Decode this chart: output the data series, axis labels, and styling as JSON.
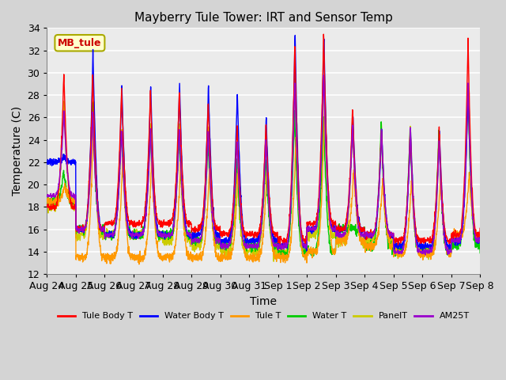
{
  "title": "Mayberry Tule Tower: IRT and Sensor Temp",
  "xlabel": "Time",
  "ylabel": "Temperature (C)",
  "ylim": [
    12,
    34
  ],
  "n_days": 15,
  "x_tick_labels": [
    "Aug 24",
    "Aug 25",
    "Aug 26",
    "Aug 27",
    "Aug 28",
    "Aug 29",
    "Aug 30",
    "Aug 31",
    "Sep 1",
    "Sep 2",
    "Sep 3",
    "Sep 4",
    "Sep 5",
    "Sep 6",
    "Sep 7",
    "Sep 8"
  ],
  "legend_entries": [
    "Tule Body T",
    "Water Body T",
    "Tule T",
    "Water T",
    "PanelT",
    "AM25T"
  ],
  "legend_colors": [
    "#ff0000",
    "#0000ff",
    "#ff9900",
    "#00cc00",
    "#cccc00",
    "#9900cc"
  ],
  "watermark_text": "MB_tule",
  "watermark_bg": "#ffffcc",
  "watermark_border": "#aaaa00",
  "watermark_fg": "#cc0000",
  "fig_bg_color": "#d4d4d4",
  "axes_bg_color": "#ebebeb",
  "grid_color": "#ffffff",
  "yticks": [
    12,
    14,
    16,
    18,
    20,
    22,
    24,
    26,
    28,
    30,
    32,
    34
  ],
  "line_colors": [
    "#ff0000",
    "#0000ff",
    "#ff9900",
    "#00cc00",
    "#cccc00",
    "#9900cc"
  ],
  "linewidth": 1.0
}
